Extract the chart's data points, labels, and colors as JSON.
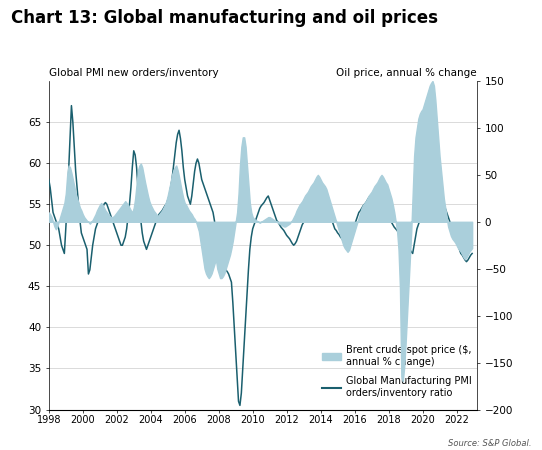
{
  "title": "Chart 13: Global manufacturing and oil prices",
  "left_ylabel": "Global PMI new orders/inventory",
  "right_ylabel": "Oil price, annual % change",
  "source": "Source: S&P Global.",
  "left_ylim": [
    30,
    70
  ],
  "right_ylim": [
    -200,
    150
  ],
  "left_yticks": [
    30,
    35,
    40,
    45,
    50,
    55,
    60,
    65
  ],
  "right_yticks": [
    -200,
    -150,
    -100,
    -50,
    0,
    50,
    100,
    150
  ],
  "pmi_color": "#1a5f6e",
  "oil_color": "#aacfdb",
  "background_color": "#ffffff",
  "pmi_data": [
    58.0,
    57.0,
    55.5,
    54.0,
    53.5,
    53.0,
    52.5,
    52.0,
    51.0,
    50.0,
    49.5,
    49.0,
    52.0,
    55.0,
    59.0,
    63.0,
    67.0,
    65.0,
    62.0,
    59.0,
    57.0,
    55.0,
    53.0,
    51.5,
    51.0,
    50.5,
    50.0,
    49.5,
    46.5,
    47.0,
    48.5,
    50.0,
    51.0,
    52.0,
    52.5,
    53.0,
    53.5,
    54.0,
    54.5,
    55.0,
    55.2,
    55.0,
    54.5,
    54.0,
    53.5,
    53.0,
    52.5,
    52.0,
    51.5,
    51.0,
    50.5,
    50.0,
    50.0,
    50.5,
    51.0,
    52.0,
    53.5,
    55.0,
    57.0,
    59.5,
    61.5,
    61.0,
    59.5,
    57.0,
    55.0,
    53.0,
    51.5,
    50.5,
    50.0,
    49.5,
    50.0,
    50.5,
    51.0,
    51.5,
    52.0,
    52.5,
    53.0,
    53.5,
    53.8,
    54.0,
    54.2,
    54.5,
    54.8,
    55.0,
    55.5,
    56.0,
    57.0,
    58.0,
    59.5,
    61.0,
    62.5,
    63.5,
    64.0,
    63.0,
    61.5,
    59.5,
    58.0,
    57.0,
    56.0,
    55.5,
    55.0,
    56.0,
    57.5,
    59.0,
    60.0,
    60.5,
    60.0,
    59.0,
    58.0,
    57.5,
    57.0,
    56.5,
    56.0,
    55.5,
    55.0,
    54.5,
    54.0,
    53.0,
    51.5,
    50.0,
    49.5,
    49.0,
    48.5,
    48.0,
    47.5,
    47.0,
    46.8,
    46.5,
    46.0,
    45.5,
    43.0,
    40.0,
    37.0,
    34.0,
    31.0,
    30.5,
    32.0,
    35.0,
    38.0,
    41.0,
    44.0,
    47.0,
    49.5,
    51.0,
    52.0,
    52.5,
    53.0,
    53.5,
    54.0,
    54.5,
    54.8,
    55.0,
    55.2,
    55.5,
    55.8,
    56.0,
    55.5,
    55.0,
    54.5,
    54.0,
    53.5,
    53.0,
    52.8,
    52.5,
    52.2,
    52.0,
    51.8,
    51.5,
    51.2,
    51.0,
    50.8,
    50.5,
    50.2,
    50.0,
    50.2,
    50.5,
    51.0,
    51.5,
    52.0,
    52.5,
    52.8,
    53.0,
    53.2,
    53.5,
    53.8,
    54.0,
    54.2,
    54.5,
    54.8,
    55.0,
    55.2,
    55.5,
    55.8,
    55.5,
    55.2,
    55.0,
    54.8,
    54.5,
    54.0,
    53.5,
    53.0,
    52.5,
    52.0,
    51.8,
    51.5,
    51.3,
    51.0,
    50.8,
    50.5,
    50.2,
    50.0,
    50.2,
    50.5,
    51.0,
    51.5,
    52.0,
    52.5,
    53.0,
    53.5,
    54.0,
    54.2,
    54.5,
    54.8,
    55.0,
    55.2,
    55.5,
    55.8,
    56.0,
    56.2,
    56.0,
    55.8,
    55.5,
    55.2,
    55.0,
    54.8,
    54.5,
    54.2,
    54.0,
    53.8,
    53.5,
    53.2,
    53.0,
    52.8,
    52.5,
    52.2,
    52.0,
    51.8,
    51.5,
    51.2,
    51.0,
    50.8,
    50.5,
    50.2,
    50.0,
    49.8,
    49.5,
    49.2,
    49.0,
    50.0,
    51.0,
    52.0,
    52.5,
    53.0,
    53.5,
    54.0,
    54.5,
    55.0,
    55.5,
    56.0,
    56.5,
    57.0,
    57.5,
    57.8,
    58.0,
    57.5,
    57.0,
    56.5,
    56.0,
    55.5,
    55.0,
    54.5,
    54.0,
    53.5,
    53.0,
    52.5,
    52.0,
    51.5,
    51.0,
    50.5,
    50.0,
    49.5,
    49.0,
    48.8,
    48.5,
    48.2,
    48.0,
    48.2,
    48.5,
    48.8,
    49.0
  ],
  "oil_data": [
    10.0,
    8.0,
    5.0,
    0.0,
    -5.0,
    -8.0,
    -5.0,
    0.0,
    5.0,
    10.0,
    15.0,
    20.0,
    30.0,
    50.0,
    60.0,
    58.0,
    52.0,
    45.0,
    38.0,
    30.0,
    25.0,
    20.0,
    15.0,
    12.0,
    8.0,
    5.0,
    3.0,
    1.0,
    0.0,
    -2.0,
    0.0,
    2.0,
    5.0,
    8.0,
    12.0,
    15.0,
    18.0,
    20.0,
    18.0,
    15.0,
    12.0,
    10.0,
    8.0,
    6.0,
    5.0,
    5.0,
    6.0,
    8.0,
    10.0,
    12.0,
    14.0,
    16.0,
    18.0,
    20.0,
    22.0,
    20.0,
    18.0,
    15.0,
    12.0,
    10.0,
    15.0,
    25.0,
    40.0,
    55.0,
    60.0,
    62.0,
    58.0,
    50.0,
    42.0,
    35.0,
    28.0,
    22.0,
    18.0,
    15.0,
    12.0,
    10.0,
    8.0,
    6.0,
    8.0,
    10.0,
    12.0,
    15.0,
    18.0,
    22.0,
    28.0,
    35.0,
    42.0,
    50.0,
    55.0,
    58.0,
    60.0,
    55.0,
    48.0,
    40.0,
    32.0,
    25.0,
    20.0,
    18.0,
    15.0,
    12.0,
    10.0,
    8.0,
    5.0,
    3.0,
    0.0,
    -5.0,
    -10.0,
    -20.0,
    -30.0,
    -40.0,
    -50.0,
    -55.0,
    -58.0,
    -60.0,
    -58.0,
    -55.0,
    -50.0,
    -45.0,
    -40.0,
    -50.0,
    -55.0,
    -60.0,
    -60.0,
    -58.0,
    -55.0,
    -50.0,
    -45.0,
    -40.0,
    -35.0,
    -28.0,
    -20.0,
    -10.0,
    0.0,
    10.0,
    30.0,
    60.0,
    80.0,
    90.0,
    90.0,
    80.0,
    60.0,
    40.0,
    20.0,
    10.0,
    5.0,
    3.0,
    2.0,
    1.0,
    0.0,
    -1.0,
    0.0,
    1.0,
    2.0,
    3.0,
    4.0,
    5.0,
    5.0,
    4.0,
    3.0,
    2.0,
    1.0,
    0.0,
    -1.0,
    -2.0,
    -3.0,
    -4.0,
    -5.0,
    -5.0,
    -4.0,
    -3.0,
    -2.0,
    0.0,
    2.0,
    5.0,
    8.0,
    12.0,
    15.0,
    18.0,
    20.0,
    22.0,
    25.0,
    28.0,
    30.0,
    32.0,
    35.0,
    38.0,
    40.0,
    42.0,
    45.0,
    48.0,
    50.0,
    48.0,
    45.0,
    42.0,
    40.0,
    38.0,
    35.0,
    30.0,
    25.0,
    20.0,
    15.0,
    10.0,
    5.0,
    0.0,
    -5.0,
    -10.0,
    -15.0,
    -20.0,
    -25.0,
    -28.0,
    -30.0,
    -32.0,
    -30.0,
    -25.0,
    -20.0,
    -15.0,
    -10.0,
    -5.0,
    0.0,
    5.0,
    10.0,
    15.0,
    18.0,
    20.0,
    22.0,
    25.0,
    28.0,
    30.0,
    32.0,
    35.0,
    38.0,
    40.0,
    42.0,
    45.0,
    48.0,
    50.0,
    48.0,
    45.0,
    42.0,
    40.0,
    35.0,
    30.0,
    25.0,
    18.0,
    10.0,
    0.0,
    -10.0,
    -30.0,
    -70.0,
    -165.0,
    -170.0,
    -155.0,
    -130.0,
    -100.0,
    -70.0,
    -40.0,
    -10.0,
    30.0,
    70.0,
    90.0,
    100.0,
    110.0,
    115.0,
    118.0,
    120.0,
    125.0,
    130.0,
    135.0,
    140.0,
    145.0,
    148.0,
    150.0,
    145.0,
    130.0,
    110.0,
    90.0,
    70.0,
    55.0,
    40.0,
    25.0,
    15.0,
    5.0,
    -5.0,
    -10.0,
    -15.0,
    -18.0,
    -20.0,
    -22.0,
    -25.0,
    -28.0,
    -30.0,
    -32.0,
    -35.0,
    -38.0,
    -40.0,
    -38.0,
    -35.0,
    -32.0,
    -30.0,
    -28.0
  ],
  "n_months": 300
}
